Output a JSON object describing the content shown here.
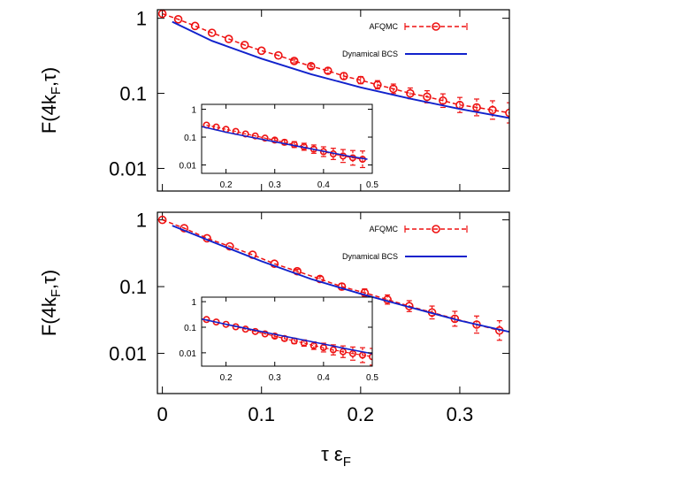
{
  "chart_data": [
    {
      "type": "line",
      "ylabel": "F(4k_F,τ)",
      "yscale": "log",
      "ylim": [
        0.005,
        1.3
      ],
      "xlim": [
        -0.005,
        0.35
      ],
      "yticks": [
        "1",
        "0.1",
        "0.01"
      ],
      "legend": {
        "position": "top-right",
        "entries": [
          "AFQMC",
          "Dynamical BCS"
        ]
      },
      "series": [
        {
          "name": "AFQMC",
          "color": "#ee1111",
          "style": "dashed-with-circle-markers-and-errorbars",
          "x": [
            0.0,
            0.016,
            0.033,
            0.05,
            0.067,
            0.083,
            0.1,
            0.117,
            0.133,
            0.15,
            0.167,
            0.183,
            0.2,
            0.217,
            0.233,
            0.25,
            0.267,
            0.283,
            0.3,
            0.317,
            0.333,
            0.35
          ],
          "y": [
            1.15,
            0.97,
            0.79,
            0.64,
            0.53,
            0.44,
            0.37,
            0.32,
            0.27,
            0.23,
            0.2,
            0.17,
            0.15,
            0.13,
            0.115,
            0.1,
            0.09,
            0.08,
            0.07,
            0.065,
            0.06,
            0.055
          ]
        },
        {
          "name": "Dynamical BCS",
          "color": "#1122cc",
          "style": "solid",
          "x": [
            0.01,
            0.05,
            0.1,
            0.15,
            0.2,
            0.25,
            0.3,
            0.35
          ],
          "y": [
            0.9,
            0.5,
            0.29,
            0.18,
            0.12,
            0.085,
            0.062,
            0.047
          ]
        }
      ],
      "inset": {
        "xticks": [
          "0.2",
          "0.3",
          "0.4",
          "0.5"
        ],
        "yticks": [
          "1",
          "0.1",
          "0.01"
        ],
        "xlim": [
          0.15,
          0.5
        ],
        "ylim": [
          0.005,
          1.5
        ],
        "series": [
          {
            "name": "AFQMC",
            "x": [
              0.16,
              0.18,
              0.2,
              0.22,
              0.24,
              0.26,
              0.28,
              0.3,
              0.32,
              0.34,
              0.36,
              0.38,
              0.4,
              0.42,
              0.44,
              0.46,
              0.48
            ],
            "y": [
              0.27,
              0.23,
              0.19,
              0.16,
              0.13,
              0.11,
              0.092,
              0.078,
              0.065,
              0.054,
              0.045,
              0.037,
              0.03,
              0.025,
              0.021,
              0.018,
              0.016
            ]
          },
          {
            "name": "Dynamical BCS",
            "x": [
              0.15,
              0.2,
              0.25,
              0.3,
              0.35,
              0.4,
              0.45,
              0.49
            ],
            "y": [
              0.24,
              0.15,
              0.1,
              0.068,
              0.046,
              0.031,
              0.021,
              0.016
            ]
          }
        ]
      }
    },
    {
      "type": "line",
      "ylabel": "F(4k_F,τ)",
      "xlabel": "τ ε_F",
      "yscale": "log",
      "ylim": [
        0.0025,
        1.3
      ],
      "xlim": [
        -0.005,
        0.35
      ],
      "xticks": [
        "0",
        "0.1",
        "0.2",
        "0.3"
      ],
      "yticks": [
        "1",
        "0.1",
        "0.01"
      ],
      "legend": {
        "position": "top-right",
        "entries": [
          "AFQMC",
          "Dynamical BCS"
        ]
      },
      "series": [
        {
          "name": "AFQMC",
          "color": "#ee1111",
          "style": "dashed-with-circle-markers-and-errorbars",
          "x": [
            0.0,
            0.022,
            0.045,
            0.068,
            0.091,
            0.113,
            0.136,
            0.159,
            0.181,
            0.204,
            0.227,
            0.249,
            0.272,
            0.295,
            0.317,
            0.34
          ],
          "y": [
            1.0,
            0.75,
            0.53,
            0.4,
            0.3,
            0.22,
            0.17,
            0.13,
            0.1,
            0.081,
            0.064,
            0.051,
            0.041,
            0.033,
            0.027,
            0.022
          ]
        },
        {
          "name": "Dynamical BCS",
          "color": "#1122cc",
          "style": "solid",
          "x": [
            0.01,
            0.05,
            0.1,
            0.15,
            0.2,
            0.25,
            0.3,
            0.35
          ],
          "y": [
            0.82,
            0.47,
            0.24,
            0.13,
            0.078,
            0.049,
            0.031,
            0.021
          ]
        }
      ],
      "inset": {
        "xticks": [
          "0.2",
          "0.3",
          "0.4",
          "0.5"
        ],
        "yticks": [
          "1",
          "0.1",
          "0.01"
        ],
        "xlim": [
          0.15,
          0.5
        ],
        "ylim": [
          0.003,
          1.5
        ],
        "series": [
          {
            "name": "AFQMC",
            "x": [
              0.16,
              0.18,
              0.2,
              0.22,
              0.24,
              0.26,
              0.28,
              0.3,
              0.32,
              0.34,
              0.36,
              0.38,
              0.4,
              0.42,
              0.44,
              0.46,
              0.48,
              0.5
            ],
            "y": [
              0.2,
              0.16,
              0.13,
              0.104,
              0.084,
              0.068,
              0.055,
              0.045,
              0.036,
              0.029,
              0.024,
              0.019,
              0.016,
              0.013,
              0.011,
              0.0093,
              0.0081,
              0.007
            ]
          },
          {
            "name": "Dynamical BCS",
            "x": [
              0.15,
              0.2,
              0.25,
              0.3,
              0.35,
              0.4,
              0.45,
              0.5
            ],
            "y": [
              0.21,
              0.13,
              0.083,
              0.053,
              0.034,
              0.022,
              0.014,
              0.0092
            ]
          }
        ]
      }
    }
  ]
}
